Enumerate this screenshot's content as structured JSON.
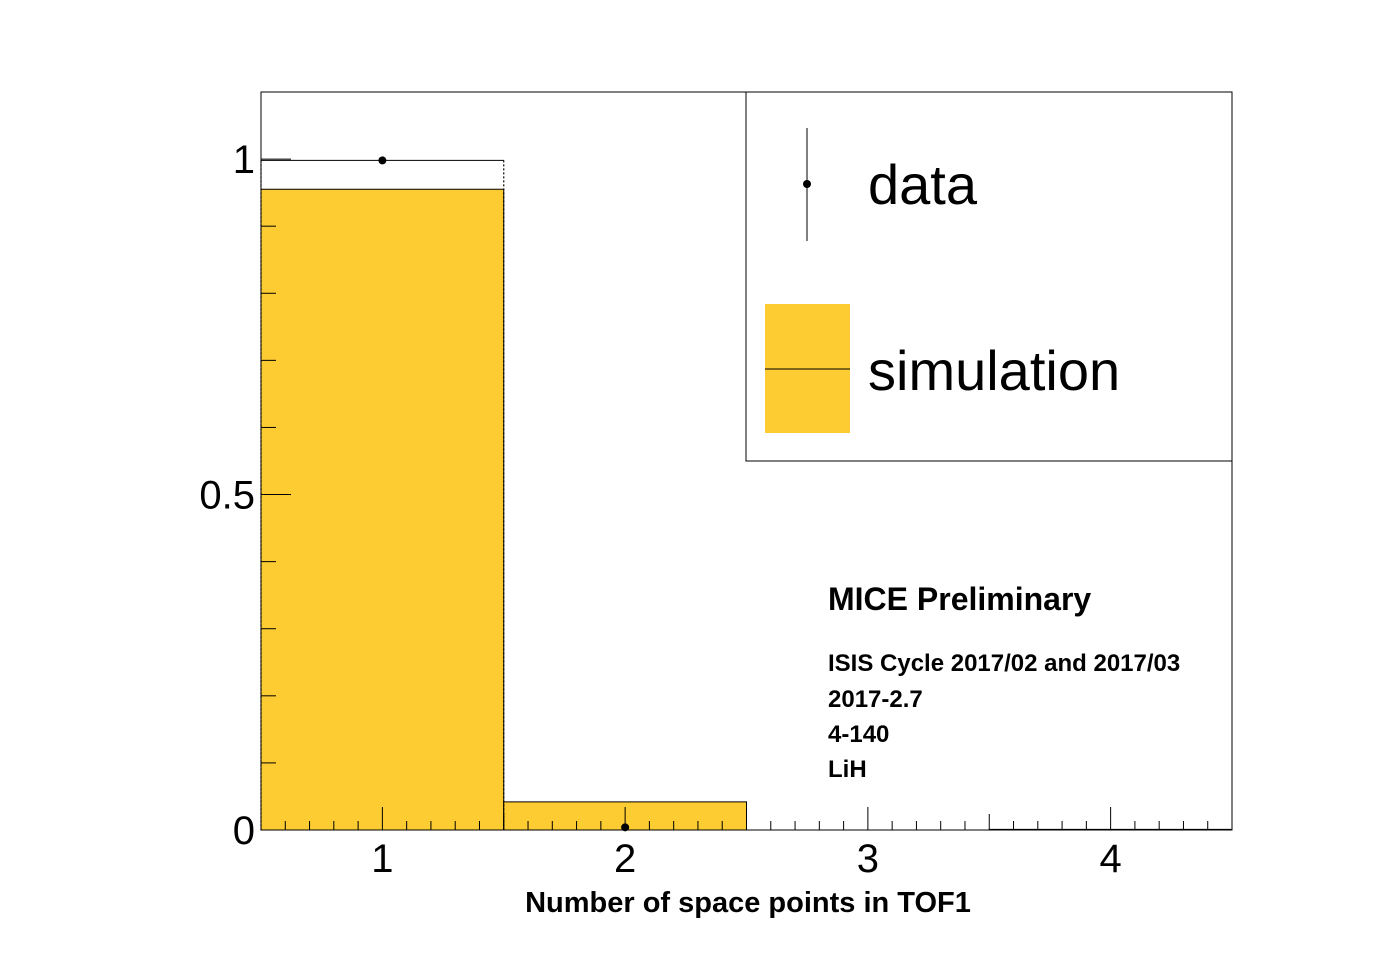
{
  "chart_data": {
    "type": "bar",
    "xlabel": "Number of space points in TOF1",
    "ylabel": "",
    "xlim": [
      0.5,
      4.5
    ],
    "ylim": [
      0,
      1.1
    ],
    "x_ticks": [
      "1",
      "2",
      "3",
      "4"
    ],
    "y_ticks": [
      "0",
      "0.5",
      "1"
    ],
    "y_tick_values": [
      0,
      0.5,
      1
    ],
    "grid": false,
    "legend_position": "top-right",
    "series": [
      {
        "name": "simulation",
        "style": "filled-histogram",
        "color": "#fdcb32",
        "x": [
          1,
          2,
          3,
          4
        ],
        "values": [
          0.955,
          0.042,
          0.0,
          0.001
        ]
      },
      {
        "name": "data",
        "style": "points-with-errors",
        "color": "#000000",
        "x": [
          1,
          2
        ],
        "values": [
          0.998,
          0.004
        ],
        "errors": [
          0.005,
          0.003
        ]
      }
    ],
    "data_step_hist": [
      0.998,
      0.004,
      0.0,
      0.0
    ],
    "legend": [
      {
        "label": "data",
        "marker": "point-error"
      },
      {
        "label": "simulation",
        "marker": "filled-box"
      }
    ],
    "annotations": {
      "title": "MICE Preliminary",
      "lines": [
        "ISIS Cycle 2017/02 and 2017/03",
        "2017-2.7",
        "4-140",
        "LiH"
      ]
    }
  }
}
